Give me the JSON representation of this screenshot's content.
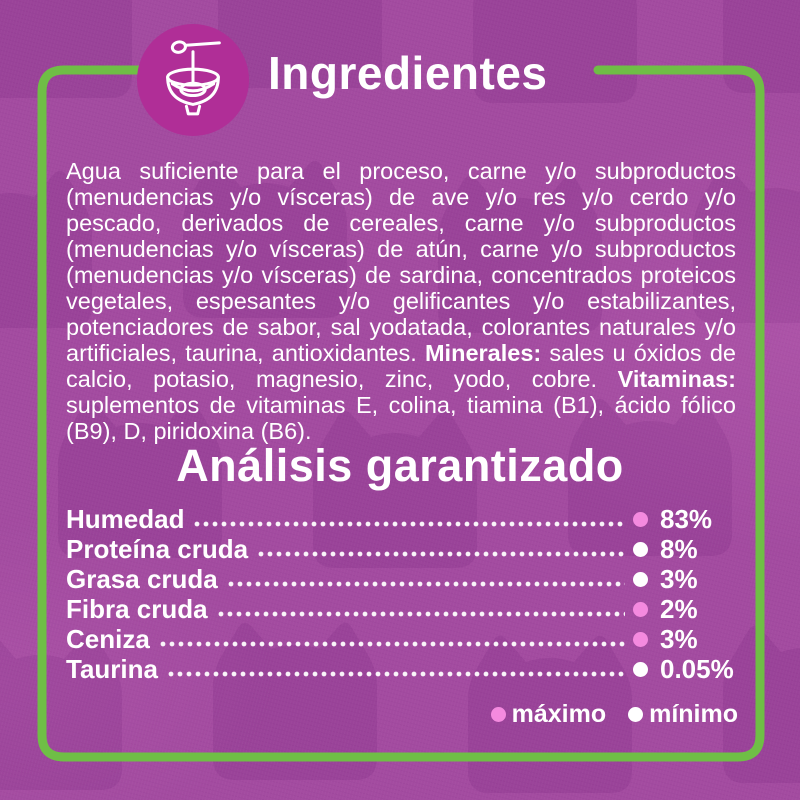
{
  "header": {
    "title": "Ingredientes",
    "icon": "bowl-spoon-icon"
  },
  "colors": {
    "background": "#A34BA0",
    "pattern_cat": "#7C2C80",
    "border_green": "#6FBE46",
    "icon_circle": "#B02E97",
    "text": "#FFFFFF",
    "dot_max": "#F48ADF",
    "dot_min": "#FFFFFF"
  },
  "ingredients": {
    "segments": [
      {
        "text": "Agua suficiente para el proceso, carne y/o subproductos (menudencias y/o vísceras) de ave y/o res y/o cerdo y/o pescado, derivados de cereales, carne y/o subproductos (menudencias y/o vísceras) de atún, carne y/o subproductos (menudencias y/o vísceras) de sardina, concentrados proteicos vegetales, espesantes y/o gelificantes y/o estabilizantes, potenciadores de sabor, sal yodatada, colorantes naturales y/o artificiales, taurina, antioxidantes. ",
        "bold": false
      },
      {
        "text": "Minerales:",
        "bold": true
      },
      {
        "text": " sales u óxidos de calcio, potasio, magnesio, zinc, yodo, cobre. ",
        "bold": false
      },
      {
        "text": "Vitaminas:",
        "bold": true
      },
      {
        "text": " suplementos de vitaminas E, colina, tiamina (B1), ácido fólico (B9), D, piridoxina (B6).",
        "bold": false
      }
    ]
  },
  "analysis": {
    "title": "Análisis garantizado",
    "rows": [
      {
        "label": "Humedad",
        "value": "83%",
        "dot": "max"
      },
      {
        "label": "Proteína cruda",
        "value": "8%",
        "dot": "min"
      },
      {
        "label": "Grasa cruda",
        "value": "3%",
        "dot": "min"
      },
      {
        "label": "Fibra cruda",
        "value": "2%",
        "dot": "max"
      },
      {
        "label": "Ceniza",
        "value": "3%",
        "dot": "max"
      },
      {
        "label": "Taurina",
        "value": "0.05%",
        "dot": "min"
      }
    ],
    "legend": [
      {
        "label": "máximo",
        "dot": "max"
      },
      {
        "label": "mínimo",
        "dot": "min"
      }
    ]
  }
}
